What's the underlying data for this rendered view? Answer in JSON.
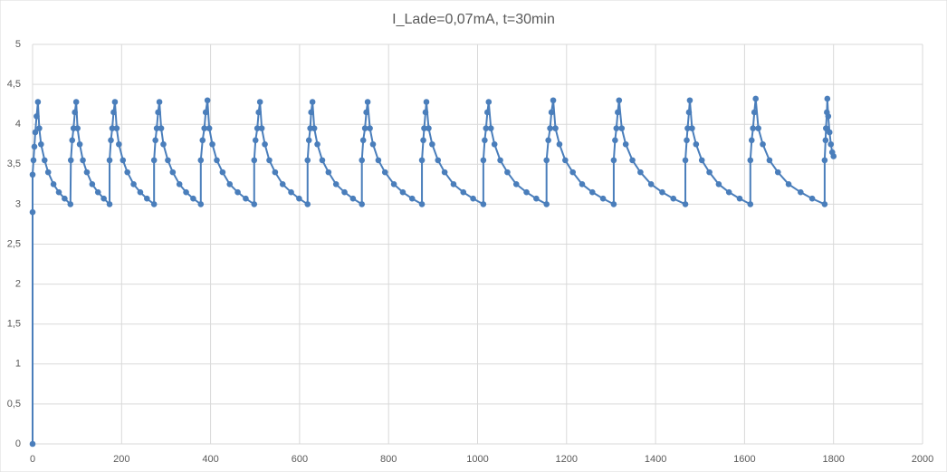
{
  "chart_data": {
    "type": "scatter",
    "title": "I_Lade=0,07mA, t=30min",
    "color": "#4a7ebb",
    "grid": true,
    "x": [
      0,
      0,
      0,
      2,
      4,
      6,
      9,
      12,
      15,
      19,
      27,
      35,
      47,
      59,
      72,
      85,
      86,
      89,
      92,
      95,
      98,
      101,
      106,
      113,
      122,
      134,
      147,
      160,
      173,
      173,
      176,
      179,
      182,
      185,
      189,
      194,
      203,
      213,
      227,
      242,
      257,
      273,
      273,
      276,
      279,
      282,
      285,
      289,
      294,
      304,
      315,
      330,
      345,
      361,
      378,
      378,
      382,
      386,
      389,
      393,
      397,
      404,
      414,
      427,
      443,
      461,
      479,
      498,
      498,
      501,
      505,
      508,
      511,
      515,
      522,
      532,
      545,
      562,
      581,
      599,
      618,
      618,
      621,
      624,
      626,
      629,
      633,
      640,
      651,
      665,
      682,
      701,
      720,
      740,
      740,
      743,
      747,
      750,
      753,
      758,
      765,
      777,
      792,
      812,
      832,
      853,
      875,
      875,
      878,
      880,
      883,
      885,
      890,
      898,
      911,
      926,
      946,
      968,
      990,
      1013,
      1013,
      1016,
      1019,
      1022,
      1025,
      1030,
      1038,
      1051,
      1067,
      1087,
      1110,
      1132,
      1155,
      1155,
      1159,
      1163,
      1166,
      1170,
      1175,
      1184,
      1197,
      1214,
      1235,
      1258,
      1282,
      1306,
      1306,
      1309,
      1312,
      1315,
      1318,
      1324,
      1333,
      1348,
      1366,
      1390,
      1415,
      1440,
      1467,
      1467,
      1470,
      1472,
      1475,
      1477,
      1482,
      1491,
      1504,
      1521,
      1542,
      1565,
      1589,
      1613,
      1613,
      1616,
      1619,
      1622,
      1625,
      1631,
      1641,
      1656,
      1675,
      1699,
      1726,
      1752,
      1780,
      1780,
      1782,
      1783,
      1785,
      1786,
      1788,
      1791,
      1794,
      1797,
      1800
    ],
    "values": [
      0,
      2.9,
      3.37,
      3.55,
      3.72,
      3.9,
      4.1,
      4.28,
      3.95,
      3.75,
      3.55,
      3.4,
      3.25,
      3.15,
      3.07,
      3,
      3.55,
      3.8,
      3.95,
      4.15,
      4.28,
      3.95,
      3.75,
      3.55,
      3.4,
      3.25,
      3.15,
      3.07,
      3,
      3.55,
      3.8,
      3.95,
      4.15,
      4.28,
      3.95,
      3.75,
      3.55,
      3.4,
      3.25,
      3.15,
      3.07,
      3,
      3.55,
      3.8,
      3.95,
      4.15,
      4.28,
      3.95,
      3.75,
      3.55,
      3.4,
      3.25,
      3.15,
      3.07,
      3,
      3.55,
      3.8,
      3.95,
      4.15,
      4.3,
      3.95,
      3.75,
      3.55,
      3.4,
      3.25,
      3.15,
      3.07,
      3,
      3.55,
      3.8,
      3.95,
      4.15,
      4.28,
      3.95,
      3.75,
      3.55,
      3.4,
      3.25,
      3.15,
      3.07,
      3,
      3.55,
      3.8,
      3.95,
      4.15,
      4.28,
      3.95,
      3.75,
      3.55,
      3.4,
      3.25,
      3.15,
      3.07,
      3,
      3.55,
      3.8,
      3.95,
      4.15,
      4.28,
      3.95,
      3.75,
      3.55,
      3.4,
      3.25,
      3.15,
      3.07,
      3,
      3.55,
      3.8,
      3.95,
      4.15,
      4.28,
      3.95,
      3.75,
      3.55,
      3.4,
      3.25,
      3.15,
      3.07,
      3,
      3.55,
      3.8,
      3.95,
      4.15,
      4.28,
      3.95,
      3.75,
      3.55,
      3.4,
      3.25,
      3.15,
      3.07,
      3,
      3.55,
      3.8,
      3.95,
      4.15,
      4.3,
      3.95,
      3.75,
      3.55,
      3.4,
      3.25,
      3.15,
      3.07,
      3,
      3.55,
      3.8,
      3.95,
      4.15,
      4.3,
      3.95,
      3.75,
      3.55,
      3.4,
      3.25,
      3.15,
      3.07,
      3,
      3.55,
      3.8,
      3.95,
      4.15,
      4.3,
      3.95,
      3.75,
      3.55,
      3.4,
      3.25,
      3.15,
      3.07,
      3,
      3.55,
      3.8,
      3.95,
      4.15,
      4.32,
      3.95,
      3.75,
      3.55,
      3.4,
      3.25,
      3.15,
      3.07,
      3,
      3.55,
      3.8,
      3.95,
      4.15,
      4.32,
      4.1,
      3.9,
      3.75,
      3.65,
      3.6
    ],
    "xlim": [
      0,
      2000
    ],
    "xticks": [
      0,
      200,
      400,
      600,
      800,
      1000,
      1200,
      1400,
      1600,
      1800,
      2000
    ],
    "ylim": [
      0,
      5
    ],
    "yticks": [
      0,
      {
        "value": 0.5,
        "label": "0,5"
      },
      1,
      {
        "value": 1.5,
        "label": "1,5"
      },
      2,
      {
        "value": 2.5,
        "label": "2,5"
      },
      3,
      {
        "value": 3.5,
        "label": "3,5"
      },
      4,
      {
        "value": 4.5,
        "label": "4,5"
      },
      5
    ]
  }
}
